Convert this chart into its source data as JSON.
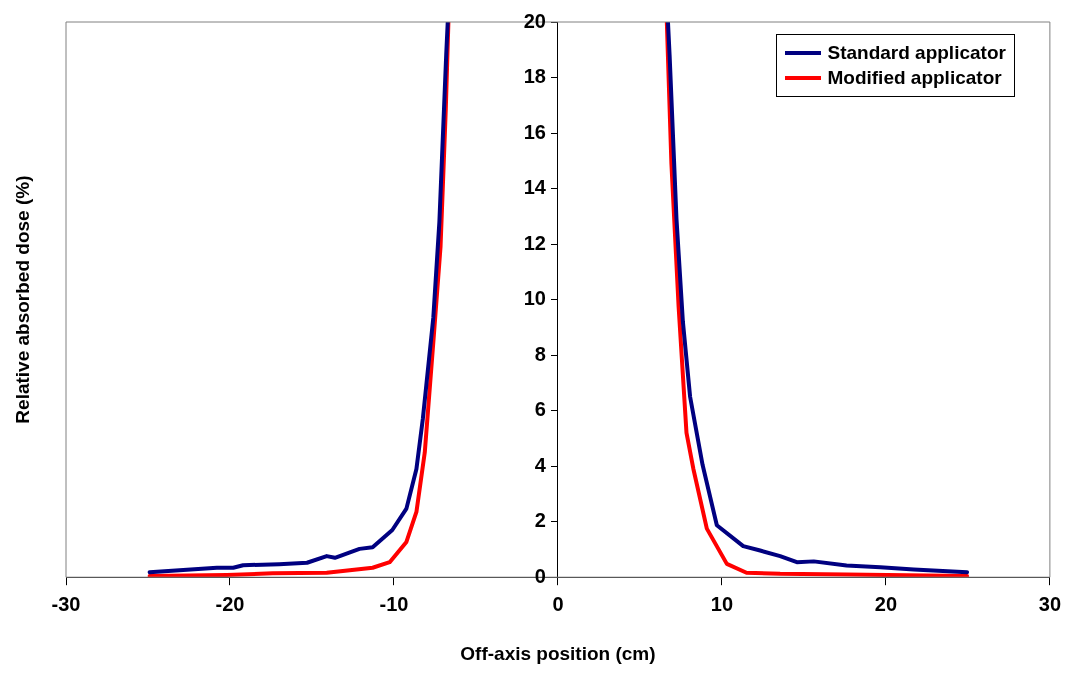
{
  "chart_data": {
    "type": "line",
    "xlabel": "Off-axis position (cm)",
    "ylabel": "Relative absorbed dose (%)",
    "xlim": [
      -30,
      30
    ],
    "xticks": [
      -30,
      -20,
      -10,
      0,
      10,
      20,
      30
    ],
    "ylim": [
      0,
      20
    ],
    "yticks": [
      0,
      2,
      4,
      6,
      8,
      10,
      12,
      14,
      16,
      18,
      20
    ],
    "grid": false,
    "legend": "top right",
    "marker": "none",
    "line_style": "solid",
    "series": [
      {
        "name": "Standard applicator",
        "color": "#000080",
        "x": [
          -24.9,
          -20.8,
          -19.8,
          -19.2,
          -17.0,
          -15.3,
          -14.1,
          -13.6,
          -12.1,
          -11.3,
          -10.1,
          -9.24,
          -8.63,
          -8.24,
          -8.03,
          -7.6,
          -7.23,
          -6.81,
          -6.72,
          0,
          6.71,
          6.81,
          7.23,
          7.62,
          8.06,
          8.82,
          9.69,
          11.3,
          12.33,
          13.55,
          14.57,
          15.6,
          17.6,
          19.66,
          21.7,
          24.95
        ],
        "values": [
          0.18,
          0.34,
          0.34,
          0.43,
          0.47,
          0.52,
          0.76,
          0.7,
          1.02,
          1.08,
          1.7,
          2.47,
          3.9,
          5.7,
          6.9,
          9.35,
          12.8,
          18.87,
          20,
          null,
          20,
          18.8,
          12.9,
          9.2,
          6.5,
          4.05,
          1.87,
          1.12,
          0.96,
          0.76,
          0.54,
          0.57,
          0.42,
          0.36,
          0.28,
          0.18
        ]
      },
      {
        "name": "Modified applicator",
        "color": "#ff0000",
        "x": [
          -24.9,
          -20.2,
          -17.4,
          -14.1,
          -11.3,
          -10.26,
          -9.24,
          -8.63,
          -8.12,
          -7.6,
          -7.16,
          -6.84,
          -6.68,
          0,
          6.64,
          6.92,
          7.36,
          7.84,
          8.26,
          9.08,
          10.3,
          11.5,
          13.55,
          17.6,
          24.95
        ],
        "values": [
          0.04,
          0.08,
          0.14,
          0.16,
          0.34,
          0.54,
          1.27,
          2.35,
          4.5,
          8.46,
          11.9,
          16.85,
          20,
          null,
          20,
          14.9,
          9.74,
          5.2,
          3.9,
          1.75,
          0.48,
          0.16,
          0.12,
          0.1,
          0.04
        ]
      }
    ]
  }
}
